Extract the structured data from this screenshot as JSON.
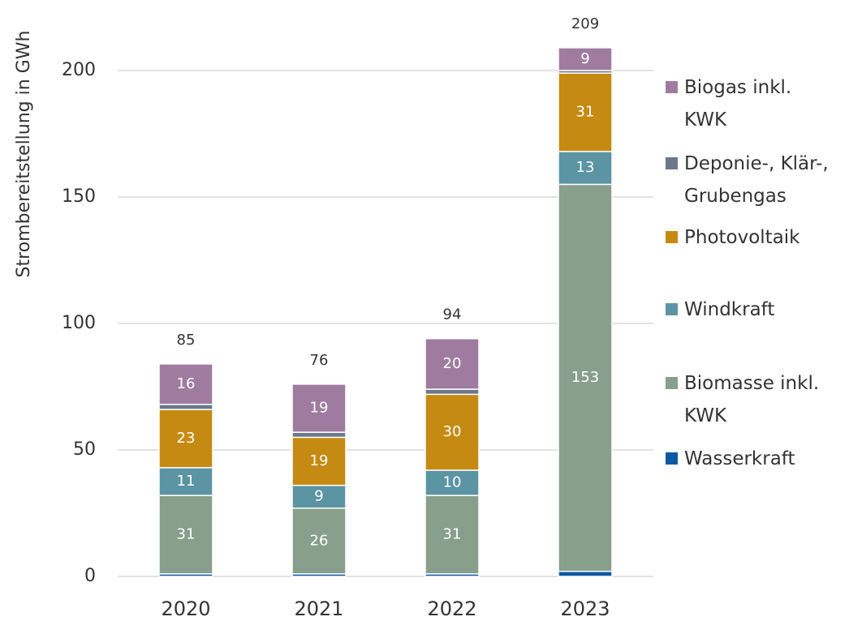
{
  "chart_data": {
    "type": "stacked_bar",
    "y_label": "Strombereitstellung in GWh",
    "categories": [
      "2020",
      "2021",
      "2022",
      "2023"
    ],
    "series": [
      {
        "name": "Wasserkraft",
        "color": "#0d58a3",
        "values": [
          1,
          1,
          1,
          2
        ]
      },
      {
        "name": "Biomasse inkl. KWK",
        "color": "#889f8b",
        "values": [
          31,
          26,
          31,
          153
        ]
      },
      {
        "name": "Windkraft",
        "color": "#5b94a3",
        "values": [
          11,
          9,
          10,
          13
        ]
      },
      {
        "name": "Photovoltaik",
        "color": "#c58a12",
        "values": [
          23,
          19,
          30,
          31
        ]
      },
      {
        "name": "Deponie-, Klär-, Grubengas",
        "color": "#6a788a",
        "values": [
          2,
          2,
          2,
          1
        ]
      },
      {
        "name": "Biogas inkl. KWK",
        "color": "#9f7c9f",
        "values": [
          16,
          19,
          20,
          9
        ]
      }
    ],
    "totals": [
      85,
      76,
      94,
      209
    ],
    "ylim": [
      0,
      200
    ],
    "yticks": [
      0,
      50,
      100,
      150,
      200
    ],
    "grid": true,
    "legend": "right"
  }
}
